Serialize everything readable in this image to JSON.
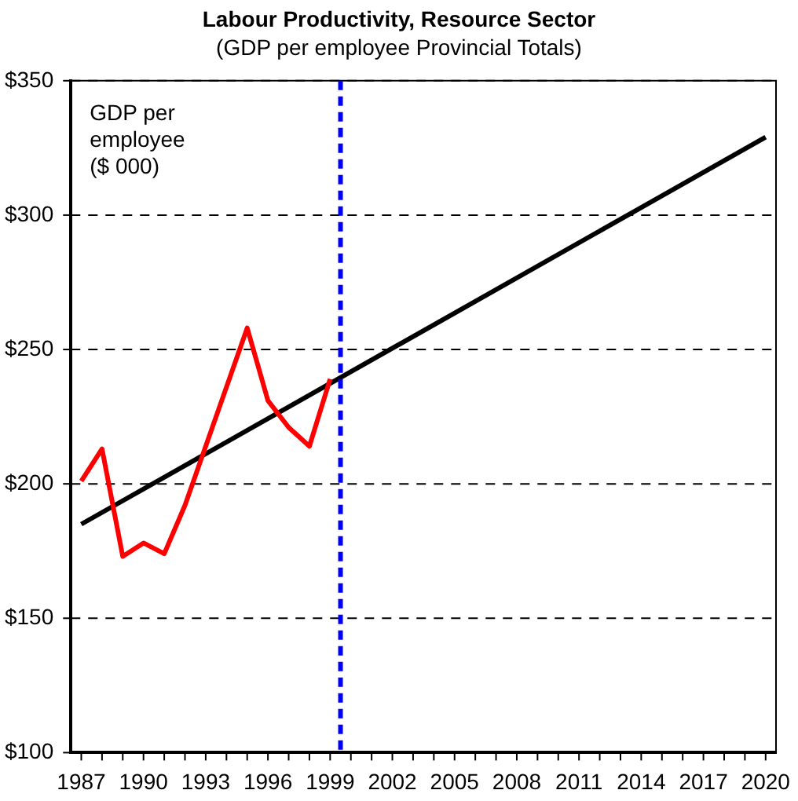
{
  "chart_data": {
    "type": "line",
    "title": "Labour Productivity, Resource Sector",
    "subtitle": "(GDP per employee Provincial Totals)",
    "annotations": [
      "GDP per\nemployee\n($ 000)"
    ],
    "series": [
      {
        "color": "#ff0000",
        "x": [
          1987,
          1988,
          1989,
          1990,
          1991,
          1992,
          1993,
          1994,
          1995,
          1996,
          1997,
          1998,
          1999
        ],
        "values": [
          201,
          213,
          173,
          178,
          174,
          192,
          214,
          236,
          258,
          231,
          221,
          214,
          239
        ]
      },
      {
        "color": "#000000",
        "x": [
          1987,
          2020
        ],
        "values": [
          185,
          329
        ]
      }
    ],
    "xlim": [
      1986.5,
      2020.5
    ],
    "xticks": [
      1987,
      {
        "value": 1988,
        "label": null
      },
      {
        "value": 1989,
        "label": null
      },
      1990,
      {
        "value": 1991,
        "label": null
      },
      {
        "value": 1992,
        "label": null
      },
      1993,
      {
        "value": 1994,
        "label": null
      },
      {
        "value": 1995,
        "label": null
      },
      1996,
      {
        "value": 1997,
        "label": null
      },
      {
        "value": 1998,
        "label": null
      },
      1999,
      {
        "value": 2000,
        "label": null
      },
      {
        "value": 2001,
        "label": null
      },
      2002,
      {
        "value": 2003,
        "label": null
      },
      {
        "value": 2004,
        "label": null
      },
      2005,
      {
        "value": 2006,
        "label": null
      },
      {
        "value": 2007,
        "label": null
      },
      2008,
      {
        "value": 2009,
        "label": null
      },
      {
        "value": 2010,
        "label": null
      },
      2011,
      {
        "value": 2012,
        "label": null
      },
      {
        "value": 2013,
        "label": null
      },
      2014,
      {
        "value": 2015,
        "label": null
      },
      {
        "value": 2016,
        "label": null
      },
      2017,
      {
        "value": 2018,
        "label": null
      },
      {
        "value": 2019,
        "label": null
      },
      2020
    ],
    "ylim": [
      100,
      350
    ],
    "yticks": [
      {
        "value": 100,
        "label": "$100"
      },
      {
        "value": 150,
        "label": "$150"
      },
      {
        "value": 200,
        "label": "$200"
      },
      {
        "value": 250,
        "label": "$250"
      },
      {
        "value": 300,
        "label": "$300"
      },
      {
        "value": 350,
        "label": "$350"
      }
    ],
    "grid": "y",
    "marker": "none",
    "line_style": "solid",
    "ref_lines": [
      {
        "axis": "x",
        "value": 1999.5,
        "color": "#0000ff",
        "line_style": "dashed"
      }
    ]
  }
}
